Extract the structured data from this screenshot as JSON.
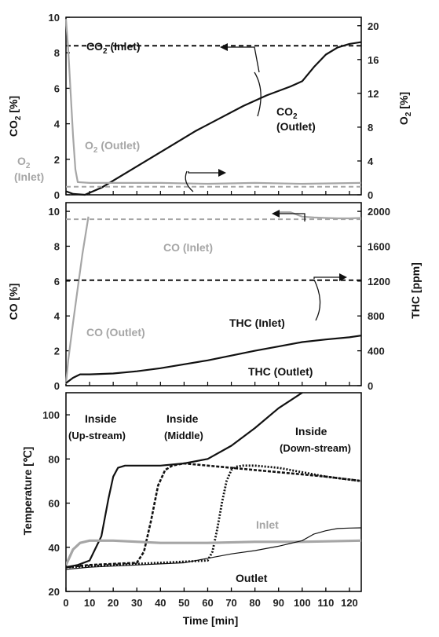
{
  "colors": {
    "black": "#111111",
    "gray": "#a6a6a6"
  },
  "chart_data": [
    {
      "type": "line",
      "xlim": [
        0,
        125
      ],
      "ylim_left": [
        0,
        10
      ],
      "ylim_right": [
        0,
        21
      ],
      "ylabel_left": "CO2 [%]",
      "ylabel_right": "O2 [%]",
      "yticks_left": [
        "0",
        "2",
        "4",
        "6",
        "8",
        "10"
      ],
      "yticks_right": [
        "0",
        "4",
        "8",
        "12",
        "16",
        "20"
      ],
      "series": [
        {
          "name": "CO2 (Inlet)",
          "axis": "left",
          "color": "#111111",
          "dash": true,
          "x": [
            0,
            125
          ],
          "y": [
            8.4,
            8.4
          ]
        },
        {
          "name": "CO2 (Outlet)",
          "axis": "left",
          "color": "#111111",
          "dash": false,
          "x": [
            0,
            3,
            8,
            15,
            25,
            35,
            45,
            55,
            65,
            75,
            85,
            95,
            100,
            105,
            110,
            115,
            120,
            125
          ],
          "y": [
            0.2,
            0.05,
            0,
            0.4,
            1.2,
            2.0,
            2.8,
            3.6,
            4.3,
            5.0,
            5.6,
            6.1,
            6.4,
            7.2,
            7.9,
            8.3,
            8.5,
            8.6
          ]
        },
        {
          "name": "O2 (Inlet)",
          "axis": "right",
          "color": "#a6a6a6",
          "dash": true,
          "x": [
            0,
            125
          ],
          "y": [
            0.95,
            0.95
          ]
        },
        {
          "name": "O2 (Outlet)",
          "axis": "right",
          "color": "#a6a6a6",
          "dash": false,
          "x": [
            0,
            1,
            2,
            3,
            4,
            5,
            10,
            20,
            40,
            60,
            80,
            100,
            125
          ],
          "y": [
            20.8,
            17,
            12,
            7,
            3,
            1.5,
            1.4,
            1.4,
            1.4,
            1.3,
            1.4,
            1.3,
            1.4
          ]
        }
      ],
      "annotations": {
        "co2_inlet_main": "CO",
        "co2_inlet_sub": "2",
        "co2_inlet_rest": " (Inlet)",
        "co2_outlet_main": "CO",
        "co2_outlet_sub": "2",
        "co2_outlet_rest": "(Outlet)",
        "o2_outlet_main": "O",
        "o2_outlet_sub": "2",
        "o2_outlet_rest": " (Outlet)",
        "o2_inlet_main": "O",
        "o2_inlet_sub": "2",
        "o2_inlet_rest": "(Inlet)"
      }
    },
    {
      "type": "line",
      "xlim": [
        0,
        125
      ],
      "ylim_left": [
        0,
        10.5
      ],
      "ylim_right": [
        0,
        2100
      ],
      "ylabel_left": "CO [%]",
      "ylabel_right": "THC [ppm]",
      "yticks_left": [
        "0",
        "2",
        "4",
        "6",
        "8",
        "10"
      ],
      "yticks_right": [
        "0",
        "400",
        "800",
        "1200",
        "1600",
        "2000"
      ],
      "series": [
        {
          "name": "CO (Inlet)",
          "axis": "left",
          "color": "#a6a6a6",
          "dash": true,
          "x": [
            0,
            125
          ],
          "y": [
            9.55,
            9.55
          ]
        },
        {
          "name": "CO (Outlet)",
          "axis": "left",
          "color": "#a6a6a6",
          "dash": false,
          "x": [
            0,
            1,
            3,
            5,
            7,
            9.5
          ],
          "y": [
            0.1,
            1.5,
            3.6,
            5.6,
            7.6,
            9.7
          ]
        },
        {
          "name": "CO (Outlet, late)",
          "axis": "left",
          "color": "#a6a6a6",
          "dash": false,
          "x": [
            90,
            95,
            100,
            105,
            110,
            115,
            120,
            125
          ],
          "y": [
            9.95,
            9.95,
            9.7,
            9.65,
            9.62,
            9.6,
            9.6,
            9.62
          ]
        },
        {
          "name": "THC (Inlet)",
          "axis": "right",
          "color": "#111111",
          "dash": true,
          "x": [
            0,
            125
          ],
          "y": [
            1210,
            1210
          ]
        },
        {
          "name": "THC (Outlet)",
          "axis": "right",
          "color": "#111111",
          "dash": false,
          "x": [
            0,
            3,
            6,
            10,
            20,
            30,
            40,
            50,
            60,
            70,
            80,
            90,
            100,
            110,
            120,
            125
          ],
          "y": [
            30,
            90,
            130,
            130,
            140,
            165,
            200,
            245,
            290,
            345,
            400,
            450,
            500,
            530,
            555,
            575
          ]
        }
      ],
      "annotations": {
        "co_inlet": "CO (Inlet)",
        "co_outlet": "CO (Outlet)",
        "thc_inlet": "THC (Inlet)",
        "thc_outlet": "THC (Outlet)"
      }
    },
    {
      "type": "line",
      "xlim": [
        0,
        125
      ],
      "ylim": [
        20,
        110
      ],
      "xlabel": "Time [min]",
      "ylabel": "Temperature [℃]",
      "xticks": [
        "0",
        "10",
        "20",
        "30",
        "40",
        "50",
        "60",
        "70",
        "80",
        "90",
        "100",
        "110",
        "120"
      ],
      "yticks": [
        "20",
        "40",
        "60",
        "80",
        "100"
      ],
      "series": [
        {
          "name": "Inside (Up-stream)",
          "color": "#111111",
          "style": "solid",
          "x": [
            0,
            5,
            10,
            15,
            18,
            20,
            22,
            25,
            30,
            40,
            50,
            60,
            70,
            80,
            90,
            100,
            110,
            125
          ],
          "y": [
            31,
            32,
            34,
            45,
            62,
            72,
            76,
            77,
            77,
            77,
            78,
            80,
            86,
            94,
            103,
            110,
            116,
            121
          ]
        },
        {
          "name": "Inside (Middle)",
          "color": "#111111",
          "style": "dash",
          "x": [
            0,
            10,
            20,
            30,
            33,
            36,
            39,
            42,
            45,
            50,
            60,
            70,
            80,
            90,
            100,
            110,
            125
          ],
          "y": [
            31,
            32,
            32.5,
            33,
            38,
            52,
            68,
            75,
            77,
            78,
            77,
            76,
            75,
            74,
            73,
            72,
            70
          ]
        },
        {
          "name": "Inside (Down-stream)",
          "color": "#111111",
          "style": "dot",
          "x": [
            0,
            20,
            40,
            60,
            62,
            64,
            66,
            68,
            70,
            72,
            75,
            80,
            90,
            100,
            110,
            125
          ],
          "y": [
            31,
            32,
            33,
            34,
            38,
            48,
            60,
            70,
            75,
            76.5,
            77,
            77,
            76,
            74,
            72,
            70
          ]
        },
        {
          "name": "Inlet",
          "color": "#a6a6a6",
          "style": "thick",
          "x": [
            0,
            3,
            6,
            10,
            20,
            40,
            60,
            80,
            100,
            125
          ],
          "y": [
            32,
            39,
            42,
            43,
            43,
            42,
            42,
            42.5,
            42.5,
            43
          ]
        },
        {
          "name": "Outlet",
          "color": "#111111",
          "style": "thin",
          "x": [
            0,
            10,
            20,
            30,
            40,
            50,
            60,
            70,
            80,
            90,
            100,
            105,
            110,
            115,
            120,
            125
          ],
          "y": [
            30,
            31,
            31.5,
            32,
            32.5,
            33,
            35,
            37,
            38.5,
            40.5,
            43,
            46,
            47.5,
            48.5,
            48.7,
            48.8
          ]
        }
      ],
      "annotations": {
        "up_1": "Inside",
        "up_2": "(Up-stream)",
        "mid_1": "Inside",
        "mid_2": "(Middle)",
        "down_1": "Inside",
        "down_2": "(Down-stream)",
        "inlet": "Inlet",
        "outlet": "Outlet"
      }
    }
  ]
}
